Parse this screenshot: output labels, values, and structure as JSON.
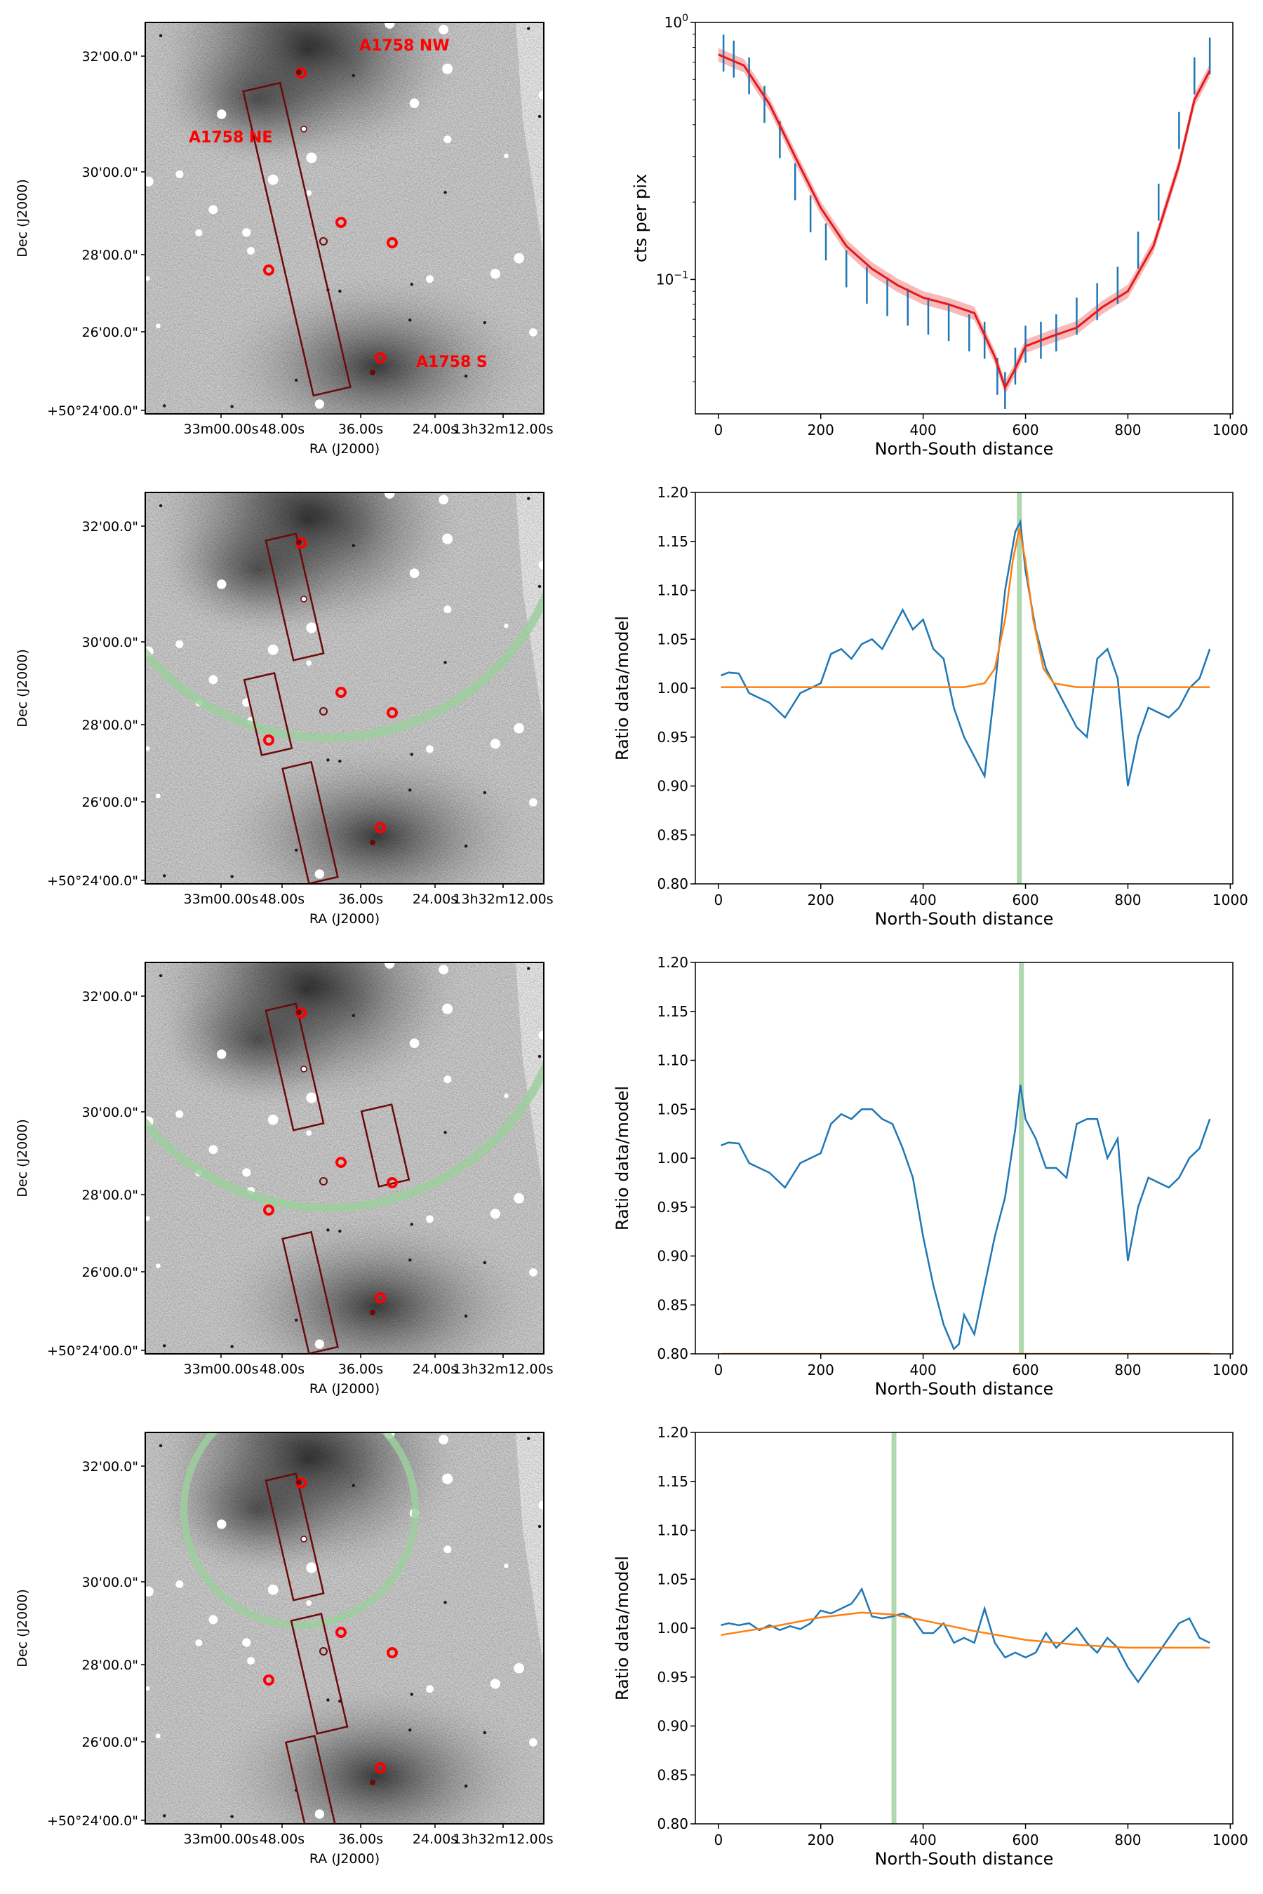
{
  "colors": {
    "series_blue": "#1f77b4",
    "model_orange": "#ff7f0e",
    "model_red": "#e31a1c",
    "band_red": "#f08080",
    "marker_green": "#9ccf9c",
    "box_maroon": "#6b0a0a",
    "label_red": "#ff0000"
  },
  "images": [
    {
      "xlabel": "RA (J2000)",
      "ylabel": "Dec (J2000)",
      "ra_ticks": [
        "33m00.00s",
        "48.00s",
        "36.00s",
        "24.00s",
        "13h32m12.00s"
      ],
      "dec_ticks": [
        "32'00.0\"",
        "30'00.0\"",
        "28'00.0\"",
        "26'00.0\"",
        "+50°24'00.0\""
      ],
      "labels": [
        "A1758 NW",
        "A1758 NE",
        "A1758 S"
      ]
    },
    {
      "xlabel": "RA (J2000)",
      "ylabel": "Dec (J2000)",
      "ra_ticks": [
        "33m00.00s",
        "48.00s",
        "36.00s",
        "24.00s",
        "13h32m12.00s"
      ],
      "dec_ticks": [
        "32'00.0\"",
        "30'00.0\"",
        "28'00.0\"",
        "26'00.0\"",
        "+50°24'00.0\""
      ],
      "labels": []
    },
    {
      "xlabel": "RA (J2000)",
      "ylabel": "Dec (J2000)",
      "ra_ticks": [
        "33m00.00s",
        "48.00s",
        "36.00s",
        "24.00s",
        "13h32m12.00s"
      ],
      "dec_ticks": [
        "32'00.0\"",
        "30'00.0\"",
        "28'00.0\"",
        "26'00.0\"",
        "+50°24'00.0\""
      ],
      "labels": []
    },
    {
      "xlabel": "RA (J2000)",
      "ylabel": "Dec (J2000)",
      "ra_ticks": [
        "33m00.00s",
        "48.00s",
        "36.00s",
        "24.00s",
        "13h32m12.00s"
      ],
      "dec_ticks": [
        "32'00.0\"",
        "30'00.0\"",
        "28'00.0\"",
        "26'00.0\"",
        "+50°24'00.0\""
      ],
      "labels": []
    }
  ],
  "chart_data": [
    {
      "type": "line",
      "title": "",
      "xlabel": "North-South distance",
      "ylabel": "cts per pix",
      "yscale": "log",
      "xlim": [
        -45,
        1005
      ],
      "ylim": [
        0.03,
        1.0
      ],
      "xticks": [
        0,
        200,
        400,
        600,
        800,
        1000
      ],
      "yticks": [
        {
          "value": 1.0,
          "label": "10^0"
        },
        {
          "value": 0.1,
          "label": "10^-1"
        }
      ],
      "series": [
        {
          "name": "data",
          "style": "errorbar",
          "x": [
            10,
            30,
            60,
            90,
            120,
            150,
            180,
            210,
            250,
            290,
            330,
            370,
            410,
            450,
            490,
            520,
            545,
            560,
            580,
            600,
            630,
            660,
            700,
            740,
            780,
            820,
            860,
            900,
            930,
            960
          ],
          "y": [
            0.76,
            0.72,
            0.62,
            0.48,
            0.35,
            0.24,
            0.18,
            0.14,
            0.11,
            0.095,
            0.085,
            0.078,
            0.072,
            0.068,
            0.062,
            0.058,
            0.042,
            0.037,
            0.046,
            0.056,
            0.058,
            0.062,
            0.072,
            0.082,
            0.095,
            0.13,
            0.2,
            0.38,
            0.62,
            0.74
          ]
        },
        {
          "name": "model",
          "style": "line",
          "x": [
            0,
            50,
            100,
            150,
            200,
            250,
            300,
            350,
            400,
            450,
            500,
            540,
            560,
            580,
            600,
            650,
            700,
            750,
            800,
            850,
            900,
            930,
            960
          ],
          "y": [
            0.75,
            0.68,
            0.48,
            0.3,
            0.19,
            0.135,
            0.11,
            0.095,
            0.085,
            0.08,
            0.074,
            0.05,
            0.038,
            0.045,
            0.055,
            0.06,
            0.065,
            0.078,
            0.09,
            0.135,
            0.28,
            0.5,
            0.65
          ]
        }
      ]
    },
    {
      "type": "line",
      "title": "",
      "xlabel": "North-South distance",
      "ylabel": "Ratio data/model",
      "xlim": [
        -45,
        1005
      ],
      "ylim": [
        0.8,
        1.2
      ],
      "xticks": [
        0,
        200,
        400,
        600,
        800,
        1000
      ],
      "yticks": [
        0.8,
        0.85,
        0.9,
        0.95,
        1.0,
        1.05,
        1.1,
        1.15,
        1.2
      ],
      "vline_x": 588,
      "series": [
        {
          "name": "ratio",
          "x": [
            5,
            20,
            40,
            60,
            80,
            100,
            130,
            160,
            200,
            220,
            240,
            260,
            280,
            300,
            320,
            340,
            360,
            380,
            400,
            420,
            440,
            460,
            480,
            500,
            520,
            540,
            560,
            580,
            590,
            600,
            620,
            640,
            660,
            680,
            700,
            720,
            740,
            760,
            780,
            800,
            820,
            840,
            860,
            880,
            900,
            920,
            940,
            960
          ],
          "y": [
            1.013,
            1.016,
            1.015,
            0.995,
            0.99,
            0.985,
            0.97,
            0.995,
            1.005,
            1.035,
            1.04,
            1.03,
            1.045,
            1.05,
            1.04,
            1.06,
            1.08,
            1.06,
            1.07,
            1.04,
            1.03,
            0.98,
            0.95,
            0.93,
            0.91,
            1.0,
            1.1,
            1.16,
            1.17,
            1.12,
            1.06,
            1.02,
            1.0,
            0.98,
            0.96,
            0.95,
            1.03,
            1.04,
            1.01,
            0.9,
            0.95,
            0.98,
            0.975,
            0.97,
            0.98,
            1.0,
            1.01,
            1.04
          ]
        },
        {
          "name": "gaussian fit",
          "x": [
            5,
            480,
            520,
            540,
            560,
            575,
            588,
            600,
            615,
            635,
            655,
            700,
            960
          ],
          "y": [
            1.001,
            1.001,
            1.005,
            1.02,
            1.07,
            1.13,
            1.163,
            1.13,
            1.07,
            1.02,
            1.005,
            1.001,
            1.001
          ]
        }
      ]
    },
    {
      "type": "line",
      "title": "",
      "xlabel": "North-South distance",
      "ylabel": "Ratio data/model",
      "xlim": [
        -45,
        1005
      ],
      "ylim": [
        0.8,
        1.2
      ],
      "xticks": [
        0,
        200,
        400,
        600,
        800,
        1000
      ],
      "yticks": [
        0.8,
        0.85,
        0.9,
        0.95,
        1.0,
        1.05,
        1.1,
        1.15,
        1.2
      ],
      "vline_x": 592,
      "series": [
        {
          "name": "ratio",
          "x": [
            5,
            20,
            40,
            60,
            80,
            100,
            130,
            160,
            200,
            220,
            240,
            260,
            280,
            300,
            320,
            340,
            360,
            380,
            400,
            420,
            440,
            460,
            470,
            480,
            500,
            520,
            540,
            560,
            580,
            590,
            600,
            620,
            640,
            660,
            680,
            700,
            720,
            740,
            760,
            780,
            800,
            820,
            840,
            860,
            880,
            900,
            920,
            940,
            960
          ],
          "y": [
            1.013,
            1.016,
            1.015,
            0.995,
            0.99,
            0.985,
            0.97,
            0.995,
            1.005,
            1.035,
            1.045,
            1.04,
            1.05,
            1.05,
            1.04,
            1.035,
            1.01,
            0.98,
            0.92,
            0.87,
            0.83,
            0.805,
            0.81,
            0.84,
            0.82,
            0.87,
            0.92,
            0.96,
            1.03,
            1.075,
            1.04,
            1.02,
            0.99,
            0.99,
            0.98,
            1.035,
            1.04,
            1.04,
            1.0,
            1.02,
            0.895,
            0.95,
            0.98,
            0.975,
            0.97,
            0.98,
            1.0,
            1.01,
            1.04
          ]
        },
        {
          "name": "gaussian fit",
          "x": [
            5,
            960
          ],
          "y": [
            0.8,
            0.8
          ]
        }
      ]
    },
    {
      "type": "line",
      "title": "",
      "xlabel": "North-South distance",
      "ylabel": "Ratio data/model",
      "xlim": [
        -45,
        1005
      ],
      "ylim": [
        0.8,
        1.2
      ],
      "xticks": [
        0,
        200,
        400,
        600,
        800,
        1000
      ],
      "yticks": [
        0.8,
        0.85,
        0.9,
        0.95,
        1.0,
        1.05,
        1.1,
        1.15,
        1.2
      ],
      "vline_x": 343,
      "series": [
        {
          "name": "ratio",
          "x": [
            5,
            20,
            40,
            60,
            80,
            100,
            120,
            140,
            160,
            180,
            200,
            220,
            240,
            260,
            270,
            280,
            300,
            320,
            340,
            360,
            380,
            400,
            420,
            440,
            460,
            480,
            500,
            520,
            540,
            560,
            580,
            600,
            620,
            640,
            660,
            680,
            700,
            720,
            740,
            760,
            780,
            800,
            820,
            840,
            860,
            880,
            900,
            920,
            940,
            960
          ],
          "y": [
            1.003,
            1.005,
            1.003,
            1.005,
            0.998,
            1.003,
            0.998,
            1.002,
            0.999,
            1.005,
            1.018,
            1.015,
            1.02,
            1.025,
            1.032,
            1.04,
            1.012,
            1.01,
            1.012,
            1.015,
            1.01,
            0.995,
            0.995,
            1.005,
            0.985,
            0.99,
            0.985,
            1.02,
            0.985,
            0.97,
            0.975,
            0.97,
            0.975,
            0.995,
            0.98,
            0.99,
            1.0,
            0.985,
            0.975,
            0.99,
            0.98,
            0.96,
            0.945,
            0.96,
            0.975,
            0.99,
            1.005,
            1.01,
            0.99,
            0.985
          ]
        },
        {
          "name": "gaussian fit",
          "x": [
            5,
            100,
            200,
            280,
            340,
            400,
            500,
            600,
            700,
            800,
            900,
            960
          ],
          "y": [
            0.993,
            1.001,
            1.011,
            1.016,
            1.014,
            1.008,
            0.997,
            0.988,
            0.983,
            0.98,
            0.98,
            0.98
          ]
        }
      ]
    }
  ]
}
